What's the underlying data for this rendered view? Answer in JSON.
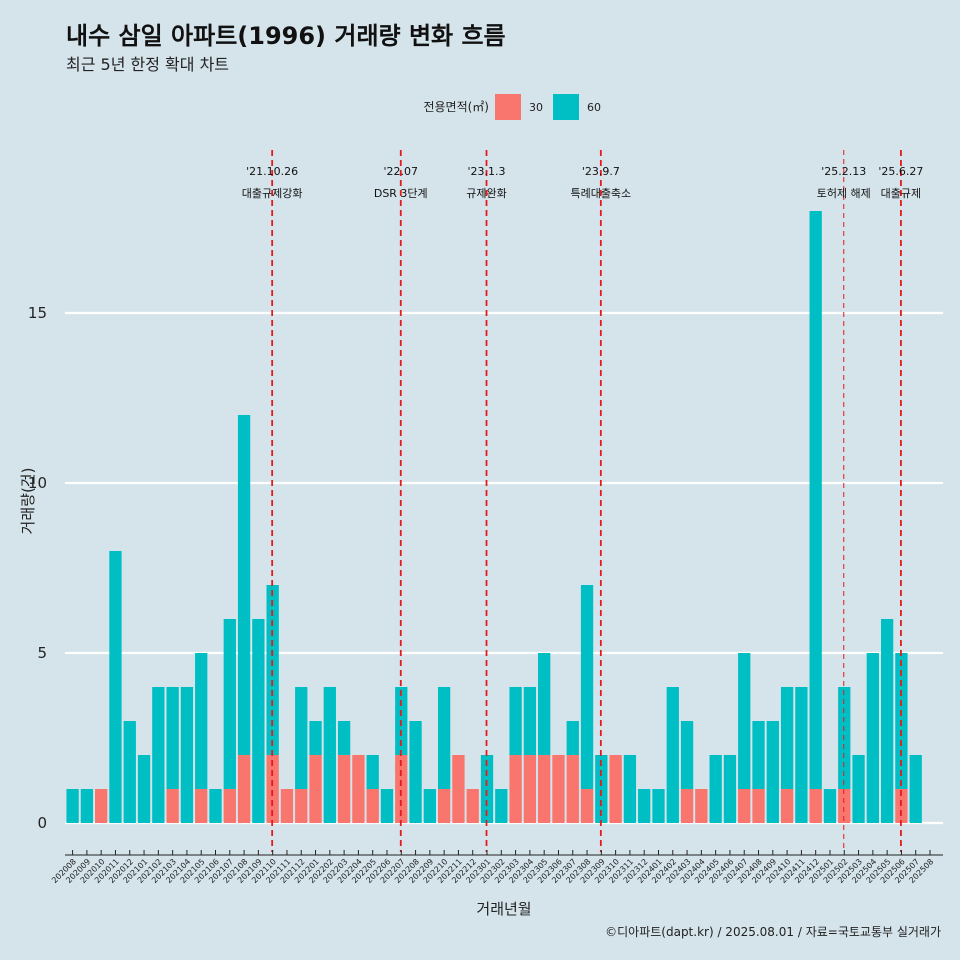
{
  "title": "내수 삼일 아파트(1996) 거래량 변화 흐름",
  "subtitle": "최근 5년 한정 확대 차트",
  "caption": "©디아파트(dapt.kr) / 2025.08.01 / 자료=국토교통부 실거래가",
  "colors": {
    "background": "#d5e4eb",
    "area30": "#f8766d",
    "area60": "#00bfc4",
    "event_line": "#e41a1c",
    "grid": "#ffffff"
  },
  "chart_data": {
    "type": "bar",
    "stacked": true,
    "xlabel": "거래년월",
    "ylabel": "거래량(건)",
    "ylim": [
      0,
      18.5
    ],
    "yticks": [
      0,
      5,
      10,
      15
    ],
    "legend": {
      "title": "전용면적(㎡)",
      "position": "top"
    },
    "categories": [
      "202008",
      "202009",
      "202010",
      "202011",
      "202012",
      "202101",
      "202102",
      "202103",
      "202104",
      "202105",
      "202106",
      "202107",
      "202108",
      "202109",
      "202110",
      "202111",
      "202112",
      "202201",
      "202202",
      "202203",
      "202204",
      "202205",
      "202206",
      "202207",
      "202208",
      "202209",
      "202210",
      "202211",
      "202212",
      "202301",
      "202302",
      "202303",
      "202304",
      "202305",
      "202306",
      "202307",
      "202308",
      "202309",
      "202310",
      "202311",
      "202312",
      "202401",
      "202402",
      "202403",
      "202404",
      "202405",
      "202406",
      "202407",
      "202408",
      "202409",
      "202410",
      "202411",
      "202412",
      "202501",
      "202502",
      "202503",
      "202504",
      "202505",
      "202506",
      "202507",
      "202508"
    ],
    "series": [
      {
        "name": "30",
        "values": [
          0,
          0,
          1,
          0,
          0,
          0,
          0,
          1,
          0,
          1,
          0,
          1,
          2,
          0,
          2,
          1,
          1,
          2,
          0,
          2,
          2,
          1,
          0,
          2,
          0,
          0,
          1,
          2,
          1,
          0,
          0,
          2,
          2,
          2,
          2,
          2,
          1,
          0,
          2,
          0,
          0,
          0,
          0,
          1,
          1,
          0,
          0,
          1,
          1,
          0,
          1,
          0,
          1,
          0,
          1,
          0,
          0,
          0,
          1,
          0,
          0
        ]
      },
      {
        "name": "60",
        "values": [
          1,
          1,
          0,
          8,
          3,
          2,
          4,
          3,
          4,
          4,
          1,
          5,
          10,
          6,
          5,
          0,
          3,
          1,
          4,
          1,
          0,
          1,
          1,
          2,
          3,
          1,
          3,
          0,
          0,
          2,
          1,
          2,
          2,
          3,
          0,
          1,
          6,
          2,
          0,
          2,
          1,
          1,
          4,
          2,
          0,
          2,
          2,
          4,
          2,
          3,
          3,
          4,
          17,
          1,
          3,
          2,
          5,
          6,
          4,
          2,
          0
        ]
      }
    ],
    "events": [
      {
        "date": "'21.10.26",
        "label": "대출규제강화",
        "after": "202110",
        "style": "bold"
      },
      {
        "date": "'22.07",
        "label": "DSR 3단계",
        "after": "202207",
        "style": "bold"
      },
      {
        "date": "'23.1.3",
        "label": "규제완화",
        "after": "202301",
        "style": "bold"
      },
      {
        "date": "'23.9.7",
        "label": "특례대출축소",
        "after": "202309",
        "style": "bold"
      },
      {
        "date": "'25.2.13",
        "label": "토허제 해제",
        "after": "202502",
        "style": "thin"
      },
      {
        "date": "'25.6.27",
        "label": "대출규제",
        "after": "202506",
        "style": "bold"
      }
    ]
  }
}
